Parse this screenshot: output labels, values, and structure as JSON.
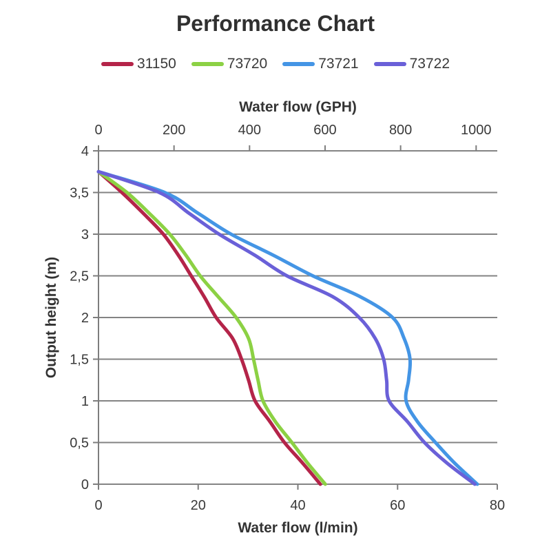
{
  "title": "Performance Chart",
  "colors": {
    "background": "#ffffff",
    "grid": "#838383",
    "axis": "#7d7d7d",
    "text": "#3a3a3a",
    "title_text": "#303030"
  },
  "chart_data": {
    "type": "line",
    "title": "Performance Chart",
    "legend_position": "top",
    "grid": "horizontal",
    "x_axis_bottom": {
      "label": "Water flow (l/min)",
      "range": [
        0,
        80
      ],
      "ticks": [
        0,
        20,
        40,
        60,
        80
      ]
    },
    "x_axis_top": {
      "label": "Water flow (GPH)",
      "range": [
        0,
        1056
      ],
      "ticks": [
        0,
        200,
        400,
        600,
        800,
        1000
      ]
    },
    "y_axis": {
      "label": "Output height (m)",
      "range": [
        0,
        4
      ],
      "ticks": [
        {
          "label": "4",
          "value": 4
        },
        {
          "label": "3,5",
          "value": 3.5
        },
        {
          "label": "3",
          "value": 3
        },
        {
          "label": "2,5",
          "value": 2.5
        },
        {
          "label": "2",
          "value": 2
        },
        {
          "label": "1,5",
          "value": 1.5
        },
        {
          "label": "1",
          "value": 1
        },
        {
          "label": "0,5",
          "value": 0.5
        },
        {
          "label": "0",
          "value": 0
        }
      ]
    },
    "series": [
      {
        "name": "31150",
        "color": "#b42449",
        "points_flow_lmin_vs_height_m": [
          [
            0,
            3.75
          ],
          [
            4.7,
            3.5
          ],
          [
            9,
            3.25
          ],
          [
            13,
            3
          ],
          [
            16,
            2.75
          ],
          [
            18.6,
            2.5
          ],
          [
            21.2,
            2.25
          ],
          [
            23.6,
            2
          ],
          [
            26.9,
            1.75
          ],
          [
            28.7,
            1.5
          ],
          [
            30.1,
            1.25
          ],
          [
            31.4,
            1
          ],
          [
            34.4,
            0.75
          ],
          [
            37.3,
            0.5
          ],
          [
            41,
            0.25
          ],
          [
            44.5,
            0
          ]
        ]
      },
      {
        "name": "73720",
        "color": "#8cd144",
        "points_flow_lmin_vs_height_m": [
          [
            0,
            3.75
          ],
          [
            5.7,
            3.5
          ],
          [
            10.2,
            3.25
          ],
          [
            14.3,
            3
          ],
          [
            17.5,
            2.75
          ],
          [
            20.4,
            2.5
          ],
          [
            24,
            2.25
          ],
          [
            27.6,
            2
          ],
          [
            30.1,
            1.75
          ],
          [
            31.1,
            1.5
          ],
          [
            32,
            1.25
          ],
          [
            33,
            1
          ],
          [
            35.5,
            0.75
          ],
          [
            38.8,
            0.5
          ],
          [
            42,
            0.25
          ],
          [
            45.5,
            0
          ]
        ]
      },
      {
        "name": "73721",
        "color": "#4495e5",
        "points_flow_lmin_vs_height_m": [
          [
            0,
            3.75
          ],
          [
            13.3,
            3.5
          ],
          [
            20,
            3.25
          ],
          [
            26.6,
            3
          ],
          [
            35,
            2.75
          ],
          [
            43,
            2.5
          ],
          [
            52.5,
            2.25
          ],
          [
            59,
            2
          ],
          [
            61.3,
            1.75
          ],
          [
            62.5,
            1.5
          ],
          [
            62.2,
            1.25
          ],
          [
            61.7,
            1
          ],
          [
            64,
            0.75
          ],
          [
            67.6,
            0.5
          ],
          [
            71.5,
            0.25
          ],
          [
            76,
            0
          ]
        ]
      },
      {
        "name": "73722",
        "color": "#6a60d8",
        "points_flow_lmin_vs_height_m": [
          [
            0,
            3.75
          ],
          [
            12.2,
            3.5
          ],
          [
            18.2,
            3.25
          ],
          [
            24.2,
            3
          ],
          [
            31.3,
            2.75
          ],
          [
            37.8,
            2.5
          ],
          [
            47,
            2.25
          ],
          [
            52.3,
            2
          ],
          [
            55.5,
            1.75
          ],
          [
            57.2,
            1.5
          ],
          [
            57.8,
            1.25
          ],
          [
            58.3,
            1
          ],
          [
            62,
            0.75
          ],
          [
            65.4,
            0.5
          ],
          [
            70,
            0.25
          ],
          [
            75.5,
            0
          ]
        ]
      }
    ]
  }
}
